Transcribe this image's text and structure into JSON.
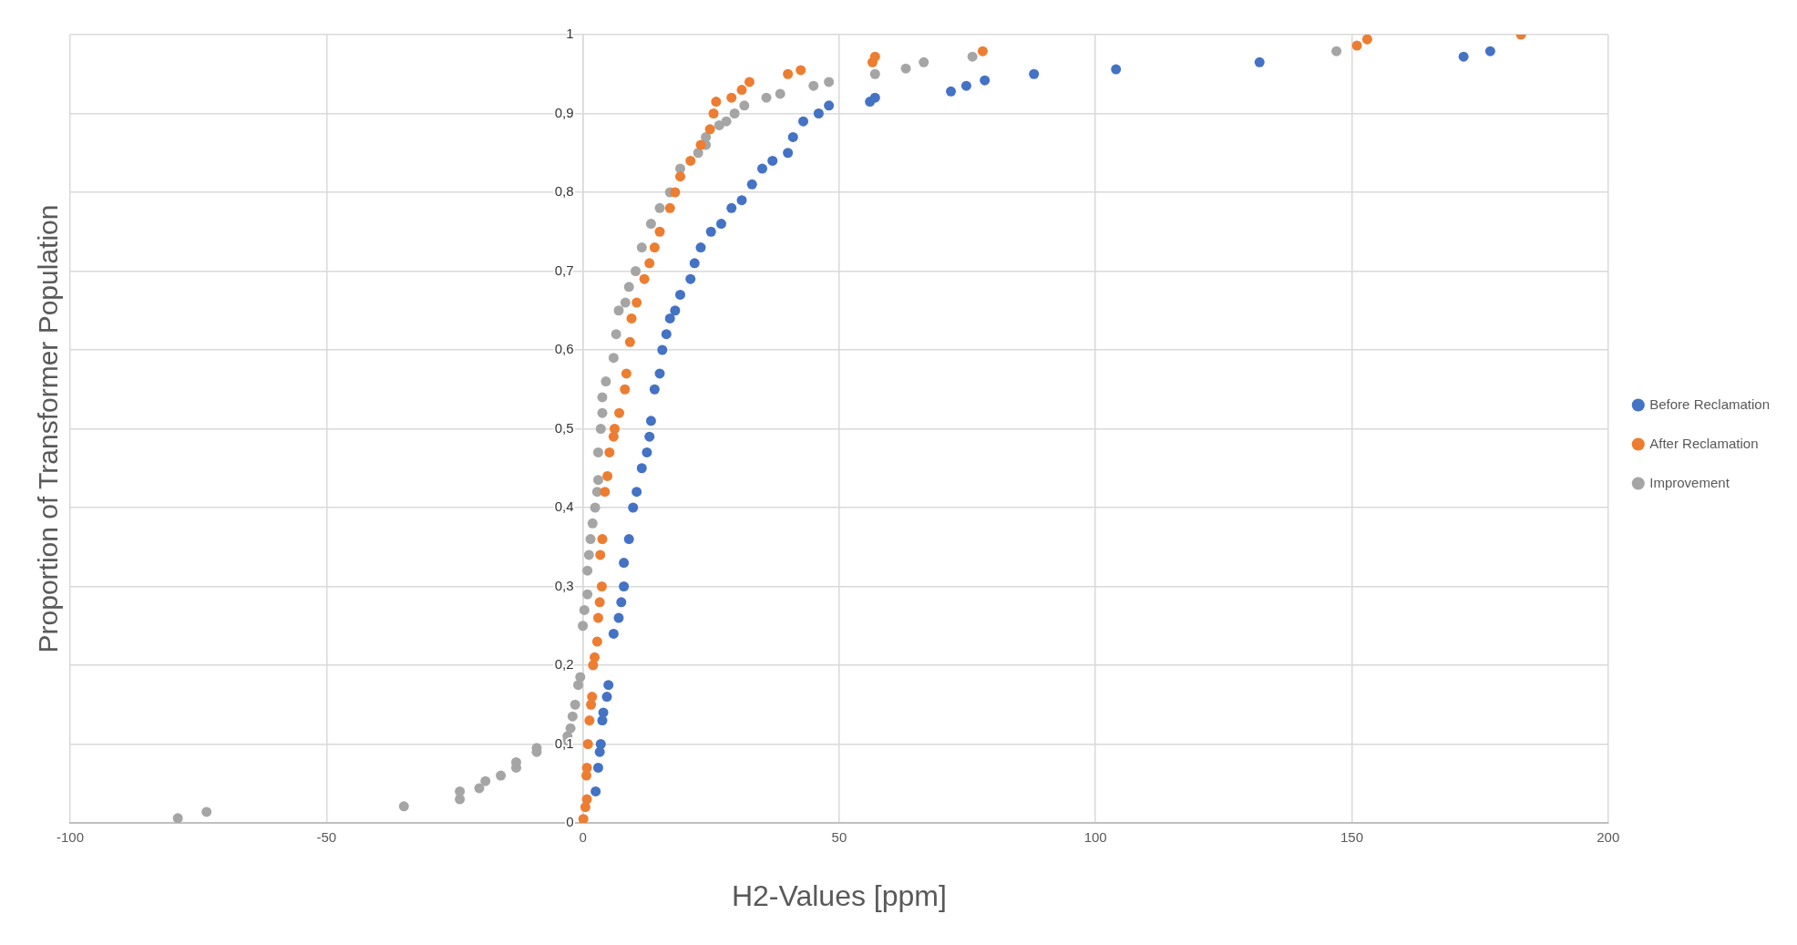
{
  "chart_data": {
    "type": "scatter",
    "xlabel": "H2-Values [ppm]",
    "ylabel": "Proportion of Transformer Population",
    "xlim": [
      -100,
      200
    ],
    "xticks": [
      -100,
      -50,
      0,
      50,
      100,
      150,
      200
    ],
    "ylim": [
      0,
      1
    ],
    "yticks": [
      0,
      {
        "value": 0.1,
        "label": "0,1"
      },
      {
        "value": 0.2,
        "label": "0,2"
      },
      {
        "value": 0.3,
        "label": "0,3"
      },
      {
        "value": 0.4,
        "label": "0,4"
      },
      {
        "value": 0.5,
        "label": "0,5"
      },
      {
        "value": 0.6,
        "label": "0,6"
      },
      {
        "value": 0.7,
        "label": "0,7"
      },
      {
        "value": 0.8,
        "label": "0,8"
      },
      {
        "value": 0.9,
        "label": "0,9"
      },
      1
    ],
    "grid": true,
    "legend": "right",
    "marker": "circle",
    "series": [
      {
        "name": "Before Reclamation",
        "color": "#4472c4",
        "x": [
          2.5,
          3,
          3.3,
          3.5,
          3.8,
          4,
          4.7,
          5,
          6,
          7,
          7.5,
          8,
          8,
          9,
          9.8,
          10.5,
          11.5,
          12.5,
          13,
          13.3,
          14,
          15,
          15.5,
          16.3,
          17,
          18,
          19,
          21,
          21.8,
          23,
          25,
          27,
          29,
          31,
          33,
          35,
          37,
          40,
          41,
          43,
          46,
          48,
          56,
          57,
          71.8,
          74.8,
          78.4,
          88,
          104,
          132,
          171.8,
          177
        ],
        "values": [
          0.04,
          0.07,
          0.09,
          0.1,
          0.13,
          0.14,
          0.16,
          0.175,
          0.24,
          0.26,
          0.28,
          0.3,
          0.33,
          0.36,
          0.4,
          0.42,
          0.45,
          0.47,
          0.49,
          0.51,
          0.55,
          0.57,
          0.6,
          0.62,
          0.64,
          0.65,
          0.67,
          0.69,
          0.71,
          0.73,
          0.75,
          0.76,
          0.78,
          0.79,
          0.81,
          0.83,
          0.84,
          0.85,
          0.87,
          0.89,
          0.9,
          0.91,
          0.915,
          0.92,
          0.928,
          0.935,
          0.942,
          0.95,
          0.956,
          0.965,
          0.972,
          0.979
        ]
      },
      {
        "name": "After Reclamation",
        "color": "#ed7d31",
        "x": [
          0.1,
          0.5,
          0.8,
          0.7,
          0.8,
          1,
          1.3,
          1.6,
          1.8,
          2,
          2.3,
          2.8,
          3,
          3.3,
          3.7,
          3.4,
          3.8,
          4.3,
          4.8,
          5.2,
          6,
          6.2,
          7.1,
          8.2,
          8.5,
          9.2,
          9.5,
          10.5,
          12,
          13,
          14,
          15,
          17,
          18,
          19,
          21,
          23,
          24.8,
          25.5,
          26,
          29,
          31,
          32.5,
          40,
          42.5,
          56.5,
          57,
          78,
          151,
          153,
          183
        ],
        "values": [
          0.005,
          0.02,
          0.03,
          0.06,
          0.07,
          0.1,
          0.13,
          0.15,
          0.16,
          0.2,
          0.21,
          0.23,
          0.26,
          0.28,
          0.3,
          0.34,
          0.36,
          0.42,
          0.44,
          0.47,
          0.49,
          0.5,
          0.52,
          0.55,
          0.57,
          0.61,
          0.64,
          0.66,
          0.69,
          0.71,
          0.73,
          0.75,
          0.78,
          0.8,
          0.82,
          0.84,
          0.86,
          0.88,
          0.9,
          0.915,
          0.92,
          0.93,
          0.94,
          0.95,
          0.955,
          0.965,
          0.972,
          0.979,
          0.986,
          0.994,
          1
        ]
      },
      {
        "name": "Improvement",
        "color": "#a5a5a5",
        "x": [
          -79,
          -73.4,
          -34.9,
          -24,
          -24,
          -20.2,
          -19,
          -16,
          -13,
          -13,
          -9,
          -9,
          -3.8,
          -3,
          -2.4,
          -2,
          -1.5,
          -0.9,
          -0.5,
          0,
          0.3,
          0.9,
          0.9,
          1.2,
          1.5,
          1.9,
          2.4,
          2.8,
          3,
          3,
          3.5,
          3.8,
          3.8,
          4.5,
          6,
          6.5,
          7,
          8.3,
          9,
          10.3,
          11.5,
          13.3,
          15,
          17,
          19,
          22.5,
          24,
          24,
          26.6,
          28,
          29.6,
          31.5,
          35.8,
          38.5,
          45,
          48,
          57,
          63,
          66.5,
          76,
          147
        ],
        "values": [
          0.006,
          0.014,
          0.021,
          0.03,
          0.04,
          0.044,
          0.053,
          0.06,
          0.07,
          0.077,
          0.09,
          0.095,
          0.1,
          0.11,
          0.12,
          0.135,
          0.15,
          0.175,
          0.185,
          0.25,
          0.27,
          0.29,
          0.32,
          0.34,
          0.36,
          0.38,
          0.4,
          0.42,
          0.435,
          0.47,
          0.5,
          0.52,
          0.54,
          0.56,
          0.59,
          0.62,
          0.65,
          0.66,
          0.68,
          0.7,
          0.73,
          0.76,
          0.78,
          0.8,
          0.83,
          0.85,
          0.86,
          0.87,
          0.885,
          0.89,
          0.9,
          0.91,
          0.92,
          0.925,
          0.935,
          0.94,
          0.95,
          0.957,
          0.965,
          0.972,
          0.979
        ]
      }
    ]
  }
}
